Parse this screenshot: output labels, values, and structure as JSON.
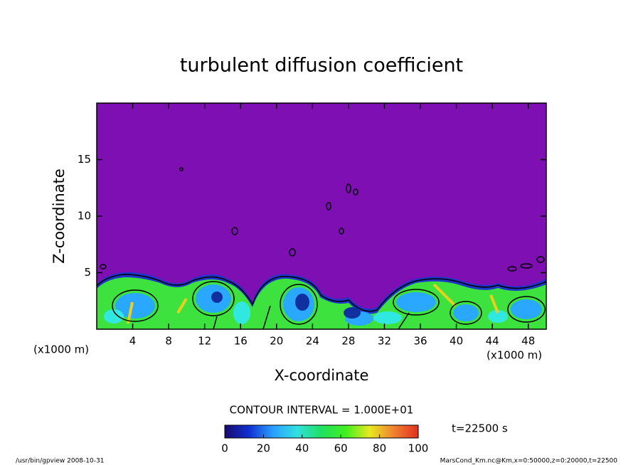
{
  "chart_data": {
    "type": "contour",
    "title": "turbulent diffusion coefficient",
    "x_label": "X-coordinate",
    "y_label": "Z-coordinate",
    "x_unit_label": "(x1000 m)",
    "xlim": [
      0,
      50
    ],
    "xticks": [
      4,
      8,
      12,
      16,
      20,
      24,
      28,
      32,
      36,
      40,
      44,
      48
    ],
    "ylim": [
      0,
      20
    ],
    "yticks": [
      5,
      10,
      15
    ],
    "background_color": "#7d0fb3",
    "contour_interval_label": "CONTOUR INTERVAL = 1.000E+01",
    "colorbar": {
      "lim": [
        0,
        100
      ],
      "ticks": [
        0,
        20,
        40,
        60,
        80,
        100
      ],
      "colors": [
        "#1a0a6e",
        "#1030d0",
        "#2aa0ff",
        "#30e0e0",
        "#20e060",
        "#40f020",
        "#e8e820",
        "#f08030",
        "#e03020"
      ]
    },
    "time_label": "t=22500 s",
    "footer_left": "/usr/bin/gpview  2008-10-31",
    "footer_right": "MarsCond_Km.nc@Km,x=0:50000,z=0:20000,t=22500"
  }
}
